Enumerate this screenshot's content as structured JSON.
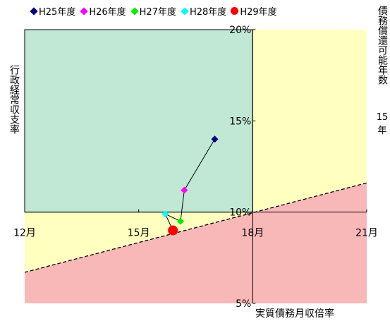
{
  "chart_data": {
    "type": "scatter",
    "title": "",
    "xlabel": "実質債務月収倍率",
    "ylabel": "行政経常収支率",
    "ylabel_right": "債務償還可能年数",
    "ylabel_right_sub": [
      "15",
      "年"
    ],
    "xlim": [
      12,
      21
    ],
    "ylim": [
      5,
      20
    ],
    "x_ticks": [
      "12月",
      "15月",
      "18月",
      "21月"
    ],
    "y_ticks": [
      "5%",
      "10%",
      "15%",
      "20%"
    ],
    "grid": false,
    "legend_position": "top",
    "connected": true,
    "series": [
      {
        "name": "H25年度",
        "x": 17.0,
        "y": 14.0,
        "marker": "diamond",
        "color": "#000080"
      },
      {
        "name": "H26年度",
        "x": 16.2,
        "y": 11.2,
        "marker": "diamond",
        "color": "#ff00ff"
      },
      {
        "name": "H27年度",
        "x": 16.1,
        "y": 9.5,
        "marker": "diamond",
        "color": "#00ee00"
      },
      {
        "name": "H28年度",
        "x": 15.7,
        "y": 9.9,
        "marker": "diamond",
        "color": "#00ffff"
      },
      {
        "name": "H29年度",
        "x": 15.9,
        "y": 9.0,
        "marker": "circle",
        "color": "#ff0000"
      }
    ],
    "reference_line": {
      "x": [
        12,
        21
      ],
      "y": [
        6.7,
        11.6
      ],
      "style": "dashed"
    },
    "regions": {
      "upper_left": "#c0e8d4",
      "yellow": "#ffffc0",
      "pink": "#f8b8b8"
    }
  }
}
